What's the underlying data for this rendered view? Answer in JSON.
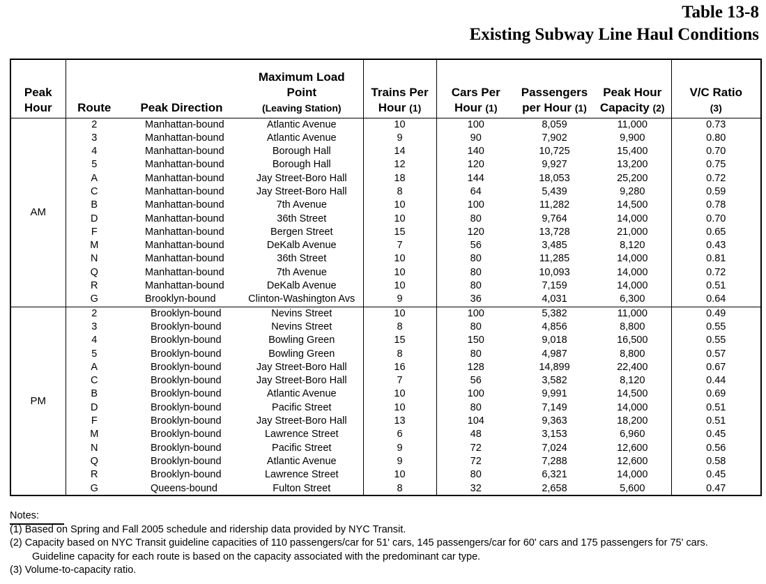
{
  "header": {
    "table_number": "Table 13-8",
    "title": "Existing Subway Line Haul Conditions"
  },
  "columns": {
    "peak_hour": [
      "Peak",
      "Hour"
    ],
    "route": "Route",
    "peak_direction": "Peak Direction",
    "max_load": [
      "Maximum Load",
      "Point",
      "(Leaving Station)"
    ],
    "trains": [
      "Trains Per",
      "Hour",
      "(1)"
    ],
    "cars": [
      "Cars Per",
      "Hour",
      "(1)"
    ],
    "passengers": [
      "Passengers",
      "per Hour",
      "(1)"
    ],
    "capacity": [
      "Peak Hour",
      "Capacity",
      "(2)"
    ],
    "vc": [
      "V/C Ratio",
      "(3)"
    ]
  },
  "groups": [
    {
      "peak": "AM",
      "rows": [
        [
          "2",
          "Manhattan-bound",
          "Atlantic Avenue",
          "10",
          "100",
          "8,059",
          "11,000",
          "0.73"
        ],
        [
          "3",
          "Manhattan-bound",
          "Atlantic Avenue",
          "9",
          "90",
          "7,902",
          "9,900",
          "0.80"
        ],
        [
          "4",
          "Manhattan-bound",
          "Borough Hall",
          "14",
          "140",
          "10,725",
          "15,400",
          "0.70"
        ],
        [
          "5",
          "Manhattan-bound",
          "Borough Hall",
          "12",
          "120",
          "9,927",
          "13,200",
          "0.75"
        ],
        [
          "A",
          "Manhattan-bound",
          "Jay Street-Boro Hall",
          "18",
          "144",
          "18,053",
          "25,200",
          "0.72"
        ],
        [
          "C",
          "Manhattan-bound",
          "Jay Street-Boro Hall",
          "8",
          "64",
          "5,439",
          "9,280",
          "0.59"
        ],
        [
          "B",
          "Manhattan-bound",
          "7th Avenue",
          "10",
          "100",
          "11,282",
          "14,500",
          "0.78"
        ],
        [
          "D",
          "Manhattan-bound",
          "36th Street",
          "10",
          "80",
          "9,764",
          "14,000",
          "0.70"
        ],
        [
          "F",
          "Manhattan-bound",
          "Bergen Street",
          "15",
          "120",
          "13,728",
          "21,000",
          "0.65"
        ],
        [
          "M",
          "Manhattan-bound",
          "DeKalb Avenue",
          "7",
          "56",
          "3,485",
          "8,120",
          "0.43"
        ],
        [
          "N",
          "Manhattan-bound",
          "36th Street",
          "10",
          "80",
          "11,285",
          "14,000",
          "0.81"
        ],
        [
          "Q",
          "Manhattan-bound",
          "7th Avenue",
          "10",
          "80",
          "10,093",
          "14,000",
          "0.72"
        ],
        [
          "R",
          "Manhattan-bound",
          "DeKalb Avenue",
          "10",
          "80",
          "7,159",
          "14,000",
          "0.51"
        ],
        [
          "G",
          "Brooklyn-bound",
          "Clinton-Washington Avs",
          "9",
          "36",
          "4,031",
          "6,300",
          "0.64"
        ]
      ]
    },
    {
      "peak": "PM",
      "rows": [
        [
          "2",
          "Brooklyn-bound",
          "Nevins Street",
          "10",
          "100",
          "5,382",
          "11,000",
          "0.49"
        ],
        [
          "3",
          "Brooklyn-bound",
          "Nevins Street",
          "8",
          "80",
          "4,856",
          "8,800",
          "0.55"
        ],
        [
          "4",
          "Brooklyn-bound",
          "Bowling Green",
          "15",
          "150",
          "9,018",
          "16,500",
          "0.55"
        ],
        [
          "5",
          "Brooklyn-bound",
          "Bowling Green",
          "8",
          "80",
          "4,987",
          "8,800",
          "0.57"
        ],
        [
          "A",
          "Brooklyn-bound",
          "Jay Street-Boro Hall",
          "16",
          "128",
          "14,899",
          "22,400",
          "0.67"
        ],
        [
          "C",
          "Brooklyn-bound",
          "Jay Street-Boro Hall",
          "7",
          "56",
          "3,582",
          "8,120",
          "0.44"
        ],
        [
          "B",
          "Brooklyn-bound",
          "Atlantic Avenue",
          "10",
          "100",
          "9,991",
          "14,500",
          "0.69"
        ],
        [
          "D",
          "Brooklyn-bound",
          "Pacific Street",
          "10",
          "80",
          "7,149",
          "14,000",
          "0.51"
        ],
        [
          "F",
          "Brooklyn-bound",
          "Jay Street-Boro Hall",
          "13",
          "104",
          "9,363",
          "18,200",
          "0.51"
        ],
        [
          "M",
          "Brooklyn-bound",
          "Lawrence Street",
          "6",
          "48",
          "3,153",
          "6,960",
          "0.45"
        ],
        [
          "N",
          "Brooklyn-bound",
          "Pacific Street",
          "9",
          "72",
          "7,024",
          "12,600",
          "0.56"
        ],
        [
          "Q",
          "Brooklyn-bound",
          "Atlantic Avenue",
          "9",
          "72",
          "7,288",
          "12,600",
          "0.58"
        ],
        [
          "R",
          "Brooklyn-bound",
          "Lawrence Street",
          "10",
          "80",
          "6,321",
          "14,000",
          "0.45"
        ],
        [
          "G",
          "Queens-bound",
          "Fulton Street",
          "8",
          "32",
          "2,658",
          "5,600",
          "0.47"
        ]
      ]
    }
  ],
  "notes": {
    "title": "Notes:",
    "items": [
      "(1) Based on Spring and Fall 2005 schedule and ridership data provided by NYC Transit.",
      "(2) Capacity based on NYC Transit guideline capacities of 110 passengers/car for 51' cars, 145 passengers/car for 60' cars and 175 passengers for 75' cars.",
      "Guideline capacity for each route is based on the capacity associated with the predominant car type.",
      "(3) Volume-to-capacity ratio."
    ]
  }
}
